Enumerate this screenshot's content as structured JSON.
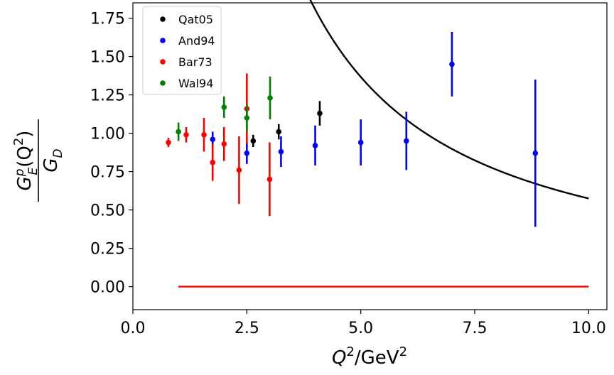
{
  "chart_data": {
    "type": "scatter",
    "title": "",
    "xlabel": {
      "base": "Q",
      "sup": "2",
      "unit": "/GeV",
      "unit_sup": "2"
    },
    "ylabel": {
      "numerator": {
        "base": "G",
        "sub": "E",
        "sup": "p",
        "args": "(Q",
        "args_sup": "2",
        "args_close": ")"
      },
      "denominator": {
        "base": "G",
        "sub": "D"
      }
    },
    "xlim": [
      0,
      10.4
    ],
    "ylim": [
      -0.15,
      1.85
    ],
    "xticks": [
      0,
      2.5,
      5,
      7.5,
      10
    ],
    "xtick_labels": [
      "0.0",
      "2.5",
      "5.0",
      "7.5",
      "10.0"
    ],
    "yticks": [
      0,
      0.25,
      0.5,
      0.75,
      1.0,
      1.25,
      1.5,
      1.75
    ],
    "ytick_labels": [
      "0.00",
      "0.25",
      "0.50",
      "0.75",
      "1.00",
      "1.25",
      "1.50",
      "1.75"
    ],
    "grid": false,
    "legend_position": "upper-left",
    "series": [
      {
        "name": "Qat05",
        "color": "#000000",
        "points": [
          {
            "x": 2.64,
            "y": 0.95,
            "err": 0.04
          },
          {
            "x": 3.2,
            "y": 1.01,
            "err": 0.05
          },
          {
            "x": 4.1,
            "y": 1.13,
            "err": 0.08
          }
        ]
      },
      {
        "name": "And94",
        "color": "#0000ff",
        "points": [
          {
            "x": 1.75,
            "y": 0.96,
            "err": 0.05
          },
          {
            "x": 2.5,
            "y": 0.87,
            "err": 0.07
          },
          {
            "x": 3.25,
            "y": 0.88,
            "err": 0.1
          },
          {
            "x": 4.0,
            "y": 0.92,
            "err": 0.13
          },
          {
            "x": 5.0,
            "y": 0.94,
            "err": 0.15
          },
          {
            "x": 6.0,
            "y": 0.95,
            "err": 0.19
          },
          {
            "x": 7.0,
            "y": 1.45,
            "err": 0.21
          },
          {
            "x": 8.83,
            "y": 0.87,
            "err": 0.48
          }
        ]
      },
      {
        "name": "Bar73",
        "color": "#ff0000",
        "points": [
          {
            "x": 0.78,
            "y": 0.94,
            "err": 0.03
          },
          {
            "x": 1.17,
            "y": 0.99,
            "err": 0.05
          },
          {
            "x": 1.56,
            "y": 0.99,
            "err": 0.11
          },
          {
            "x": 1.75,
            "y": 0.81,
            "err": 0.12
          },
          {
            "x": 2.0,
            "y": 0.93,
            "err": 0.11
          },
          {
            "x": 2.33,
            "y": 0.76,
            "err": 0.22
          },
          {
            "x": 2.5,
            "y": 1.16,
            "err": 0.23
          },
          {
            "x": 3.0,
            "y": 0.7,
            "err": 0.24
          }
        ]
      },
      {
        "name": "Wal94",
        "color": "#008000",
        "points": [
          {
            "x": 1.0,
            "y": 1.01,
            "err": 0.06
          },
          {
            "x": 2.0,
            "y": 1.17,
            "err": 0.07
          },
          {
            "x": 2.5,
            "y": 1.1,
            "err": 0.09
          },
          {
            "x": 3.01,
            "y": 1.23,
            "err": 0.14
          }
        ]
      }
    ],
    "lines": [
      {
        "color": "#000000",
        "formula": "1.7*(Q2/4.2)^-1.25",
        "x_start": 3.36,
        "x_end": 10.0
      },
      {
        "color": "#ff0000",
        "y": 0.0,
        "x_start": 1.0,
        "x_end": 10.0
      }
    ]
  }
}
